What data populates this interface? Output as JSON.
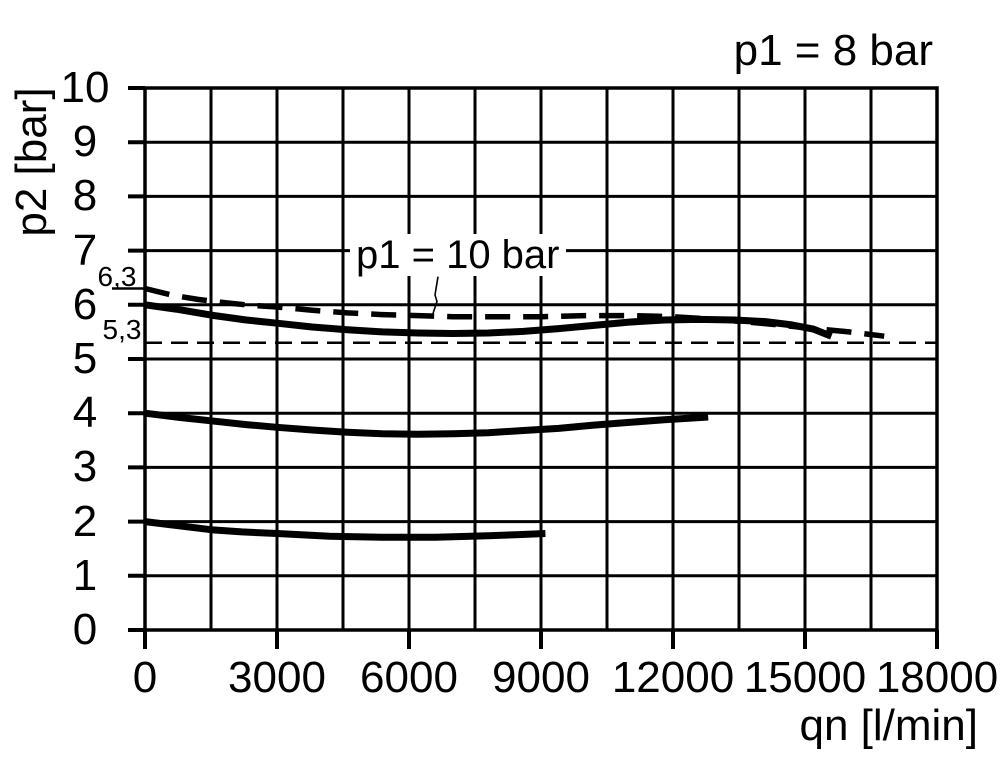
{
  "colors": {
    "ink": "#000000",
    "background": "#ffffff"
  },
  "chart_data": {
    "type": "line",
    "title": "p1 = 8 bar",
    "xlabel": "qn [l/min]",
    "ylabel": "p2 [bar]",
    "xlim": [
      0,
      18000
    ],
    "ylim": [
      0,
      10
    ],
    "x_grid_step": 1500,
    "y_grid_step": 1,
    "grid": true,
    "legend_position": "none",
    "x_ticks": [
      {
        "value": 0,
        "label": "0"
      },
      {
        "value": 3000,
        "label": "3000"
      },
      {
        "value": 6000,
        "label": "6000"
      },
      {
        "value": 9000,
        "label": "9000"
      },
      {
        "value": 12000,
        "label": "12000"
      },
      {
        "value": 15000,
        "label": "15000"
      },
      {
        "value": 18000,
        "label": "18000"
      }
    ],
    "y_ticks": [
      {
        "value": 10,
        "label": "10"
      },
      {
        "value": 9,
        "label": "9"
      },
      {
        "value": 8,
        "label": "8"
      },
      {
        "value": 7,
        "label": "7"
      },
      {
        "value": 6,
        "label": "6"
      },
      {
        "value": 5,
        "label": "5"
      },
      {
        "value": 4,
        "label": "4"
      },
      {
        "value": 3,
        "label": "3"
      },
      {
        "value": 2,
        "label": "2"
      },
      {
        "value": 1,
        "label": "1"
      },
      {
        "value": 0,
        "label": "0"
      }
    ],
    "reference_lines": [
      {
        "label": "6,3",
        "value": 6.3,
        "style": "tick-only"
      },
      {
        "label": "5,3",
        "value": 5.3,
        "style": "dashed-full"
      }
    ],
    "annotations": [
      {
        "text": "p1 = 10 bar",
        "target_series": "curve-p1-10bar-dashed",
        "leader": [
          [
            6660,
            6.52
          ],
          [
            6590,
            6.18
          ],
          [
            6636,
            6.06
          ],
          [
            6520,
            5.78
          ]
        ]
      }
    ],
    "series": [
      {
        "id": "curve-p1-10bar-dashed",
        "style": "dashed",
        "points": [
          [
            0,
            6.3
          ],
          [
            600,
            6.18
          ],
          [
            1200,
            6.1
          ],
          [
            1800,
            6.04
          ],
          [
            2400,
            5.99
          ],
          [
            3000,
            5.96
          ],
          [
            3800,
            5.9
          ],
          [
            4600,
            5.85
          ],
          [
            5400,
            5.82
          ],
          [
            6200,
            5.8
          ],
          [
            7000,
            5.78
          ],
          [
            8000,
            5.78
          ],
          [
            9000,
            5.78
          ],
          [
            10000,
            5.8
          ],
          [
            11000,
            5.8
          ],
          [
            12000,
            5.78
          ],
          [
            13000,
            5.73
          ],
          [
            14000,
            5.66
          ],
          [
            15000,
            5.58
          ],
          [
            16000,
            5.5
          ],
          [
            16800,
            5.42
          ]
        ]
      },
      {
        "id": "curve-p2-6bar",
        "style": "solid",
        "points": [
          [
            0,
            6.0
          ],
          [
            700,
            5.92
          ],
          [
            1500,
            5.81
          ],
          [
            2300,
            5.72
          ],
          [
            3000,
            5.66
          ],
          [
            3800,
            5.59
          ],
          [
            4600,
            5.54
          ],
          [
            5400,
            5.5
          ],
          [
            6200,
            5.48
          ],
          [
            7000,
            5.47
          ],
          [
            7800,
            5.48
          ],
          [
            8600,
            5.51
          ],
          [
            9400,
            5.56
          ],
          [
            10200,
            5.62
          ],
          [
            11000,
            5.68
          ],
          [
            11800,
            5.72
          ],
          [
            12600,
            5.73
          ],
          [
            13400,
            5.72
          ],
          [
            14100,
            5.69
          ],
          [
            14700,
            5.63
          ],
          [
            15200,
            5.55
          ],
          [
            15600,
            5.42
          ]
        ]
      },
      {
        "id": "curve-p2-4bar",
        "style": "solid",
        "points": [
          [
            0,
            4.0
          ],
          [
            800,
            3.92
          ],
          [
            1500,
            3.86
          ],
          [
            2300,
            3.79
          ],
          [
            3000,
            3.74
          ],
          [
            3800,
            3.69
          ],
          [
            4600,
            3.65
          ],
          [
            5400,
            3.62
          ],
          [
            6200,
            3.61
          ],
          [
            7000,
            3.62
          ],
          [
            7800,
            3.64
          ],
          [
            8600,
            3.68
          ],
          [
            9400,
            3.72
          ],
          [
            10200,
            3.78
          ],
          [
            11000,
            3.83
          ],
          [
            11800,
            3.88
          ],
          [
            12400,
            3.91
          ],
          [
            12800,
            3.93
          ]
        ]
      },
      {
        "id": "curve-p2-2bar",
        "style": "solid",
        "points": [
          [
            0,
            2.0
          ],
          [
            700,
            1.93
          ],
          [
            1500,
            1.85
          ],
          [
            2200,
            1.81
          ],
          [
            3000,
            1.78
          ],
          [
            4200,
            1.73
          ],
          [
            5400,
            1.71
          ],
          [
            6600,
            1.71
          ],
          [
            7800,
            1.74
          ],
          [
            8500,
            1.76
          ],
          [
            9100,
            1.78
          ]
        ]
      }
    ]
  }
}
